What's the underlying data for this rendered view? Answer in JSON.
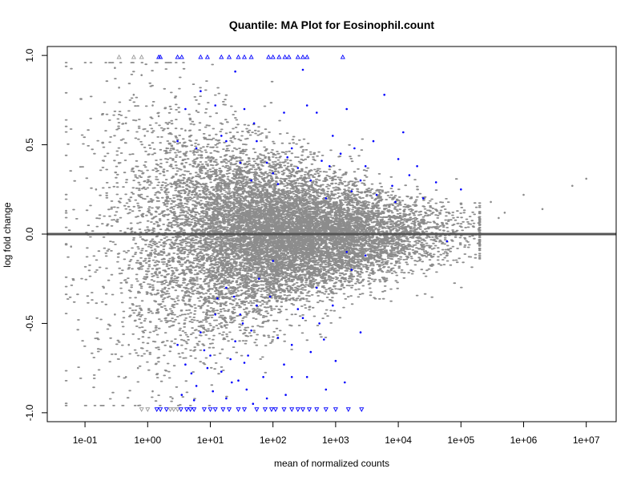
{
  "chart_data": {
    "type": "scatter",
    "title": "Quantile: MA Plot for Eosinophil.count",
    "xlabel": "mean of normalized counts",
    "ylabel": "log fold change",
    "x_scale": "log10",
    "xlim": [
      0.025,
      30000000
    ],
    "ylim": [
      -1.05,
      1.05
    ],
    "x_ticks": [
      {
        "value": 0.1,
        "label": "1e-01"
      },
      {
        "value": 1,
        "label": "1e+00"
      },
      {
        "value": 10,
        "label": "1e+01"
      },
      {
        "value": 100,
        "label": "1e+02"
      },
      {
        "value": 1000,
        "label": "1e+03"
      },
      {
        "value": 10000,
        "label": "1e+04"
      },
      {
        "value": 100000,
        "label": "1e+05"
      },
      {
        "value": 1000000,
        "label": "1e+06"
      },
      {
        "value": 10000000,
        "label": "1e+07"
      }
    ],
    "y_ticks": [
      {
        "value": 1.0,
        "label": "1.0"
      },
      {
        "value": 0.5,
        "label": "0.5"
      },
      {
        "value": 0.0,
        "label": "0.0"
      },
      {
        "value": -0.5,
        "label": "-0.5"
      },
      {
        "value": -1.0,
        "label": "-1.0"
      }
    ],
    "reference_line_y": 0,
    "grid": false,
    "colors": {
      "nonsignificant": "#8c8c8c",
      "significant": "#0000ff",
      "reference_line": "#555555"
    },
    "series": [
      {
        "points": [
          [
            0.3,
            0.93
          ],
          [
            0.35,
            0.82
          ],
          [
            0.6,
            0.78
          ],
          [
            0.8,
            0.89
          ],
          [
            1.2,
            0.72
          ],
          [
            0.45,
            0.62
          ],
          [
            0.2,
            0.41
          ],
          [
            0.15,
            0.25
          ],
          [
            0.6,
            0.35
          ],
          [
            2,
            0.48
          ],
          [
            4,
            0.58
          ],
          [
            0.9,
            0.55
          ],
          [
            1.5,
            0.66
          ],
          [
            6,
            0.69
          ],
          [
            0.5,
            -0.62
          ],
          [
            0.3,
            -0.45
          ],
          [
            0.2,
            -0.3
          ],
          [
            0.7,
            -0.75
          ],
          [
            1.2,
            -0.88
          ],
          [
            2.5,
            -0.92
          ],
          [
            0.45,
            -0.8
          ],
          [
            10000000,
            0.31
          ],
          [
            6000000,
            0.27
          ],
          [
            2000000,
            0.14
          ],
          [
            1000000,
            0.22
          ],
          [
            500000,
            0.12
          ],
          [
            300000,
            0.18
          ],
          [
            200000,
            -0.05
          ],
          [
            400000,
            0.09
          ],
          [
            0.05,
            0.13
          ],
          [
            0.06,
            -0.07
          ]
        ]
      },
      {
        "points": [
          [
            25,
            0.91
          ],
          [
            300,
            0.92
          ],
          [
            7,
            0.8
          ],
          [
            4,
            0.7
          ],
          [
            35,
            0.7
          ],
          [
            12,
            0.72
          ],
          [
            50,
            0.62
          ],
          [
            150,
            0.68
          ],
          [
            350,
            0.72
          ],
          [
            500,
            0.68
          ],
          [
            900,
            0.55
          ],
          [
            1500,
            0.7
          ],
          [
            2000,
            0.48
          ],
          [
            6000,
            0.78
          ],
          [
            12000,
            0.57
          ],
          [
            20000,
            0.38
          ],
          [
            40000,
            0.29
          ],
          [
            100000,
            0.25
          ],
          [
            3,
            0.52
          ],
          [
            6,
            0.48
          ],
          [
            15,
            0.55
          ],
          [
            18,
            0.52
          ],
          [
            55,
            0.52
          ],
          [
            80,
            0.4
          ],
          [
            100,
            0.34
          ],
          [
            200,
            0.48
          ],
          [
            250,
            0.37
          ],
          [
            400,
            0.3
          ],
          [
            600,
            0.41
          ],
          [
            1200,
            0.45
          ],
          [
            3000,
            0.38
          ],
          [
            4000,
            0.52
          ],
          [
            8000,
            0.27
          ],
          [
            15000,
            0.33
          ],
          [
            9000,
            0.18
          ],
          [
            700,
            0.2
          ],
          [
            1800,
            0.24
          ],
          [
            2500,
            0.3
          ],
          [
            30,
            0.4
          ],
          [
            45,
            0.3
          ],
          [
            120,
            0.28
          ],
          [
            170,
            0.43
          ],
          [
            800,
            0.38
          ],
          [
            4500,
            0.22
          ],
          [
            10000,
            0.42
          ],
          [
            25000,
            0.2
          ],
          [
            60000,
            -0.04
          ],
          [
            3000,
            -0.12
          ],
          [
            1500,
            -0.1
          ],
          [
            18,
            -0.3
          ],
          [
            12,
            -0.45
          ],
          [
            25,
            -0.6
          ],
          [
            8,
            -0.65
          ],
          [
            5,
            -0.78
          ],
          [
            6,
            -0.85
          ],
          [
            18,
            -0.92
          ],
          [
            22,
            -0.83
          ],
          [
            35,
            -0.72
          ],
          [
            45,
            -0.54
          ],
          [
            55,
            -0.4
          ],
          [
            90,
            -0.35
          ],
          [
            120,
            -0.58
          ],
          [
            200,
            -0.62
          ],
          [
            300,
            -0.47
          ],
          [
            400,
            -0.66
          ],
          [
            650,
            -0.59
          ],
          [
            1000,
            -0.71
          ],
          [
            1400,
            -0.83
          ],
          [
            2500,
            -0.55
          ],
          [
            700,
            -0.87
          ],
          [
            160,
            -0.9
          ],
          [
            70,
            -0.8
          ],
          [
            40,
            -0.68
          ],
          [
            28,
            -0.82
          ],
          [
            3,
            -0.62
          ],
          [
            4,
            -0.73
          ],
          [
            7,
            -0.55
          ],
          [
            10,
            -0.68
          ],
          [
            15,
            -0.77
          ],
          [
            30,
            -0.45
          ],
          [
            60,
            -0.25
          ],
          [
            100,
            -0.15
          ],
          [
            250,
            -0.42
          ],
          [
            500,
            -0.3
          ],
          [
            900,
            -0.4
          ],
          [
            13,
            -0.36
          ],
          [
            24,
            -0.35
          ],
          [
            38,
            -0.87
          ],
          [
            80,
            -0.92
          ],
          [
            3.5,
            -0.9
          ],
          [
            5.5,
            -0.93
          ],
          [
            9,
            -0.75
          ],
          [
            11,
            -0.88
          ],
          [
            21,
            -0.7
          ],
          [
            33,
            -0.5
          ],
          [
            48,
            -0.95
          ],
          [
            150,
            -0.73
          ],
          [
            200,
            -0.8
          ],
          [
            350,
            -0.8
          ],
          [
            550,
            -0.5
          ],
          [
            1800,
            -0.2
          ]
        ]
      },
      {
        "points": [
          [
            0.35,
            0.99
          ],
          [
            0.6,
            0.99
          ],
          [
            0.8,
            0.99
          ],
          [
            1.5,
            0.99
          ],
          [
            1.6,
            0.99
          ],
          [
            3,
            0.99
          ],
          [
            3.5,
            0.99
          ],
          [
            7,
            0.99
          ],
          [
            9,
            0.99
          ],
          [
            15,
            0.99
          ],
          [
            20,
            0.99
          ],
          [
            28,
            0.99
          ],
          [
            35,
            0.99
          ],
          [
            45,
            0.99
          ],
          [
            85,
            0.99
          ],
          [
            100,
            0.99
          ],
          [
            125,
            0.99
          ],
          [
            155,
            0.99
          ],
          [
            180,
            0.99
          ],
          [
            250,
            0.99
          ],
          [
            300,
            0.99
          ],
          [
            350,
            0.99
          ],
          [
            1300,
            0.99
          ]
        ]
      },
      {
        "points": [
          [
            0.8,
            -0.98
          ],
          [
            1.0,
            -0.98
          ],
          [
            1.4,
            -0.98
          ],
          [
            1.6,
            -0.98
          ],
          [
            2,
            -0.98
          ],
          [
            2.3,
            -0.98
          ],
          [
            2.6,
            -0.98
          ],
          [
            3,
            -0.98
          ],
          [
            3.4,
            -0.98
          ],
          [
            4.2,
            -0.98
          ],
          [
            4.8,
            -0.98
          ],
          [
            5.5,
            -0.98
          ],
          [
            8,
            -0.98
          ],
          [
            10,
            -0.98
          ],
          [
            12,
            -0.98
          ],
          [
            16,
            -0.98
          ],
          [
            20,
            -0.98
          ],
          [
            28,
            -0.98
          ],
          [
            35,
            -0.98
          ],
          [
            55,
            -0.98
          ],
          [
            75,
            -0.98
          ],
          [
            95,
            -0.98
          ],
          [
            110,
            -0.98
          ],
          [
            150,
            -0.98
          ],
          [
            200,
            -0.98
          ],
          [
            250,
            -0.98
          ],
          [
            300,
            -0.98
          ],
          [
            380,
            -0.98
          ],
          [
            500,
            -0.98
          ],
          [
            700,
            -0.98
          ],
          [
            1000,
            -0.98
          ],
          [
            1600,
            -0.98
          ],
          [
            2600,
            -0.98
          ]
        ]
      }
    ]
  }
}
